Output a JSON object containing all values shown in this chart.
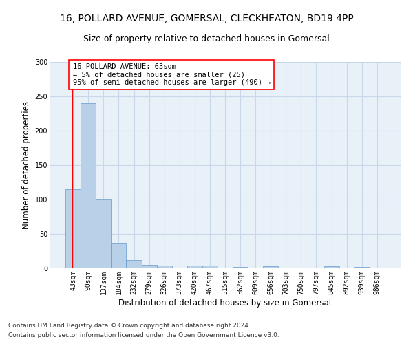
{
  "title1": "16, POLLARD AVENUE, GOMERSAL, CLECKHEATON, BD19 4PP",
  "title2": "Size of property relative to detached houses in Gomersal",
  "xlabel": "Distribution of detached houses by size in Gomersal",
  "ylabel": "Number of detached properties",
  "categories": [
    "43sqm",
    "90sqm",
    "137sqm",
    "184sqm",
    "232sqm",
    "279sqm",
    "326sqm",
    "373sqm",
    "420sqm",
    "467sqm",
    "515sqm",
    "562sqm",
    "609sqm",
    "656sqm",
    "703sqm",
    "750sqm",
    "797sqm",
    "845sqm",
    "892sqm",
    "939sqm",
    "986sqm"
  ],
  "values": [
    115,
    240,
    101,
    37,
    12,
    5,
    4,
    0,
    4,
    4,
    0,
    2,
    0,
    3,
    0,
    0,
    0,
    3,
    0,
    2,
    0
  ],
  "bar_color": "#b8d0e8",
  "bar_edge_color": "#6699cc",
  "grid_color": "#c8d8ea",
  "bg_color": "#e8f0f8",
  "annotation_line1": "16 POLLARD AVENUE: 63sqm",
  "annotation_line2": "← 5% of detached houses are smaller (25)",
  "annotation_line3": "95% of semi-detached houses are larger (490) →",
  "ylim": [
    0,
    300
  ],
  "yticks": [
    0,
    50,
    100,
    150,
    200,
    250,
    300
  ],
  "footer_line1": "Contains HM Land Registry data © Crown copyright and database right 2024.",
  "footer_line2": "Contains public sector information licensed under the Open Government Licence v3.0.",
  "title1_fontsize": 10,
  "title2_fontsize": 9,
  "ylabel_fontsize": 8.5,
  "xlabel_fontsize": 8.5,
  "tick_fontsize": 7,
  "footer_fontsize": 6.5,
  "annotation_fontsize": 7.5
}
